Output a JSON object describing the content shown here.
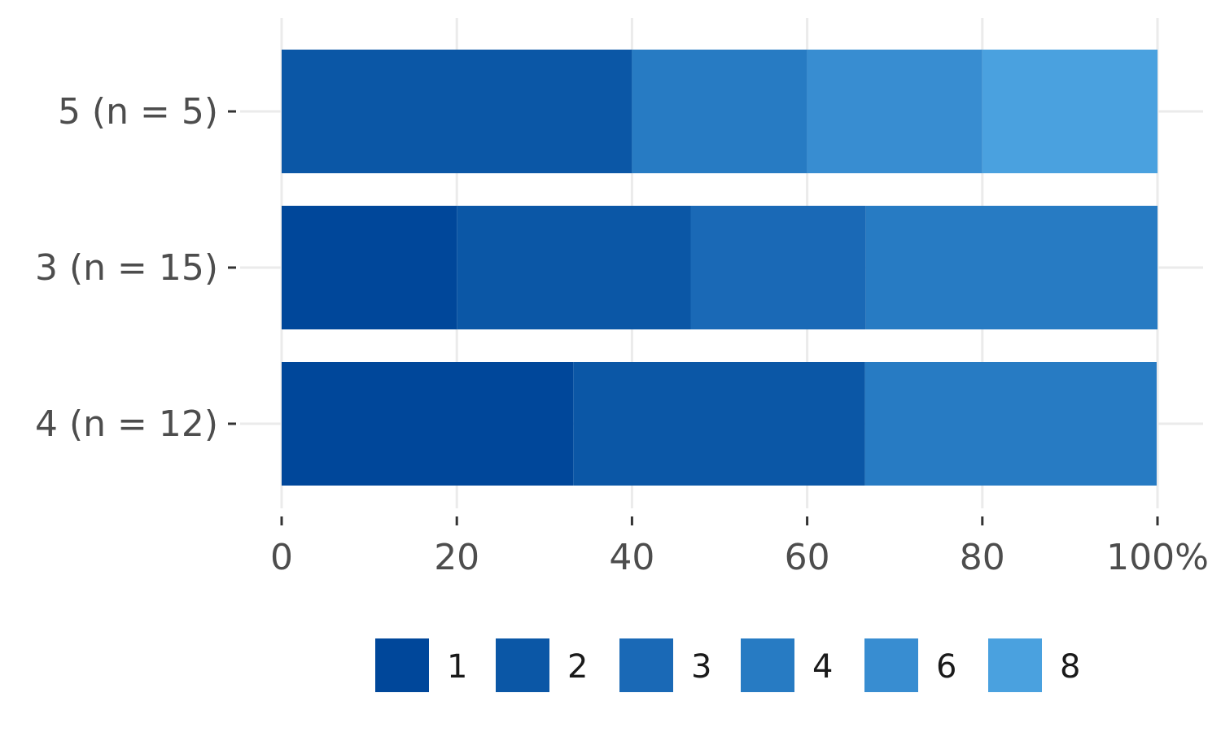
{
  "chart_data": {
    "type": "bar",
    "orientation": "horizontal",
    "stacked": true,
    "categories": [
      "5 (n = 5)",
      "3 (n = 15)",
      "4 (n = 12)"
    ],
    "series": [
      {
        "name": "1",
        "color": "#00479a",
        "values": [
          0,
          20,
          33.3
        ]
      },
      {
        "name": "2",
        "color": "#0b57a6",
        "values": [
          40,
          26.7,
          33.3
        ]
      },
      {
        "name": "3",
        "color": "#1a69b6",
        "values": [
          0,
          20,
          0
        ]
      },
      {
        "name": "4",
        "color": "#277bc3",
        "values": [
          20,
          33.3,
          33.3
        ]
      },
      {
        "name": "6",
        "color": "#388dd1",
        "values": [
          20,
          0,
          0
        ]
      },
      {
        "name": "8",
        "color": "#4aa1df",
        "values": [
          20,
          0,
          0
        ]
      }
    ],
    "x_ticks": [
      "0",
      "20",
      "40",
      "60",
      "80",
      "100%"
    ],
    "xlim": [
      0,
      100
    ],
    "xlabel": "",
    "ylabel": "",
    "grid": true,
    "legend_position": "bottom"
  }
}
